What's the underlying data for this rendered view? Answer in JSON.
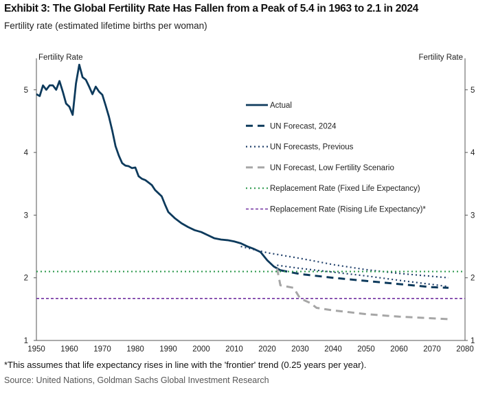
{
  "title": "Exhibit 3: The Global Fertility Rate Has Fallen from a Peak of 5.4 in 1963 to 2.1 in 2024",
  "subtitle": "Fertility rate (estimated lifetime births per woman)",
  "footnote": "*This assumes that life expectancy rises in line with the 'frontier' trend (0.25 years per year).",
  "source": "Source: United Nations, Goldman Sachs Global Investment Research",
  "chart_data": {
    "type": "line",
    "ylabel_left": "Fertility Rate",
    "ylabel_right": "Fertility Rate",
    "xlim": [
      1950,
      2080
    ],
    "ylim": [
      1,
      5.5
    ],
    "xticks": [
      1950,
      1960,
      1970,
      1980,
      1990,
      2000,
      2010,
      2020,
      2030,
      2040,
      2050,
      2060,
      2070,
      2080
    ],
    "yticks": [
      1,
      2,
      3,
      4,
      5
    ],
    "legend_position": "top-center",
    "series": [
      {
        "name": "Actual",
        "color": "#0d3a5c",
        "style": "solid",
        "points": [
          [
            1950,
            4.93
          ],
          [
            1951,
            4.9
          ],
          [
            1952,
            5.07
          ],
          [
            1953,
            5.0
          ],
          [
            1954,
            5.07
          ],
          [
            1955,
            5.07
          ],
          [
            1956,
            5.0
          ],
          [
            1957,
            5.14
          ],
          [
            1958,
            4.97
          ],
          [
            1959,
            4.78
          ],
          [
            1960,
            4.73
          ],
          [
            1961,
            4.6
          ],
          [
            1962,
            5.1
          ],
          [
            1963,
            5.4
          ],
          [
            1964,
            5.2
          ],
          [
            1965,
            5.16
          ],
          [
            1966,
            5.05
          ],
          [
            1967,
            4.93
          ],
          [
            1968,
            5.05
          ],
          [
            1969,
            4.97
          ],
          [
            1970,
            4.92
          ],
          [
            1971,
            4.75
          ],
          [
            1972,
            4.57
          ],
          [
            1973,
            4.35
          ],
          [
            1974,
            4.1
          ],
          [
            1975,
            3.95
          ],
          [
            1976,
            3.83
          ],
          [
            1977,
            3.79
          ],
          [
            1978,
            3.78
          ],
          [
            1979,
            3.75
          ],
          [
            1980,
            3.76
          ],
          [
            1981,
            3.62
          ],
          [
            1982,
            3.58
          ],
          [
            1983,
            3.56
          ],
          [
            1984,
            3.52
          ],
          [
            1985,
            3.48
          ],
          [
            1986,
            3.4
          ],
          [
            1987,
            3.35
          ],
          [
            1988,
            3.3
          ],
          [
            1989,
            3.17
          ],
          [
            1990,
            3.05
          ],
          [
            1992,
            2.95
          ],
          [
            1994,
            2.87
          ],
          [
            1996,
            2.81
          ],
          [
            1998,
            2.76
          ],
          [
            2000,
            2.73
          ],
          [
            2002,
            2.68
          ],
          [
            2004,
            2.63
          ],
          [
            2006,
            2.61
          ],
          [
            2008,
            2.6
          ],
          [
            2010,
            2.58
          ],
          [
            2012,
            2.55
          ],
          [
            2014,
            2.5
          ],
          [
            2016,
            2.46
          ],
          [
            2018,
            2.41
          ],
          [
            2020,
            2.28
          ],
          [
            2022,
            2.18
          ],
          [
            2024,
            2.12
          ]
        ]
      },
      {
        "name": "UN Forecast, 2024",
        "color": "#0d3a5c",
        "style": "dash",
        "points": [
          [
            2024,
            2.12
          ],
          [
            2030,
            2.06
          ],
          [
            2040,
            2.0
          ],
          [
            2050,
            1.95
          ],
          [
            2060,
            1.9
          ],
          [
            2070,
            1.85
          ],
          [
            2075,
            1.84
          ]
        ]
      },
      {
        "name": "UN Forecasts, Previous",
        "color": "#1f3f6a",
        "style": "dot",
        "points": [
          [
            2012,
            2.5
          ],
          [
            2020,
            2.4
          ],
          [
            2030,
            2.31
          ],
          [
            2040,
            2.21
          ],
          [
            2050,
            2.13
          ],
          [
            2060,
            2.07
          ],
          [
            2075,
            2.0
          ]
        ]
      },
      {
        "name": "UN Forecasts, Previous",
        "color": "#1f3f6a",
        "style": "dot",
        "legend": false,
        "points": [
          [
            2023,
            2.2
          ],
          [
            2030,
            2.15
          ],
          [
            2040,
            2.09
          ],
          [
            2050,
            2.03
          ],
          [
            2060,
            1.96
          ],
          [
            2075,
            1.86
          ]
        ]
      },
      {
        "name": "UN Forecast, Low Fertility Scenario",
        "color": "#a6a6a6",
        "style": "dash",
        "points": [
          [
            2023,
            2.15
          ],
          [
            2024,
            1.88
          ],
          [
            2026,
            1.86
          ],
          [
            2028,
            1.84
          ],
          [
            2030,
            1.67
          ],
          [
            2033,
            1.6
          ],
          [
            2035,
            1.52
          ],
          [
            2040,
            1.48
          ],
          [
            2050,
            1.42
          ],
          [
            2060,
            1.38
          ],
          [
            2075,
            1.34
          ]
        ]
      },
      {
        "name": "Replacement Rate (Fixed Life Expectancy)",
        "color": "#2e9a4e",
        "style": "dot",
        "points": [
          [
            1950,
            2.1
          ],
          [
            2080,
            2.1
          ]
        ]
      },
      {
        "name": "Replacement Rate (Rising Life Expectancy)*",
        "color": "#7030a0",
        "style": "shortdash",
        "points": [
          [
            1950,
            1.67
          ],
          [
            2080,
            1.67
          ]
        ]
      }
    ]
  }
}
